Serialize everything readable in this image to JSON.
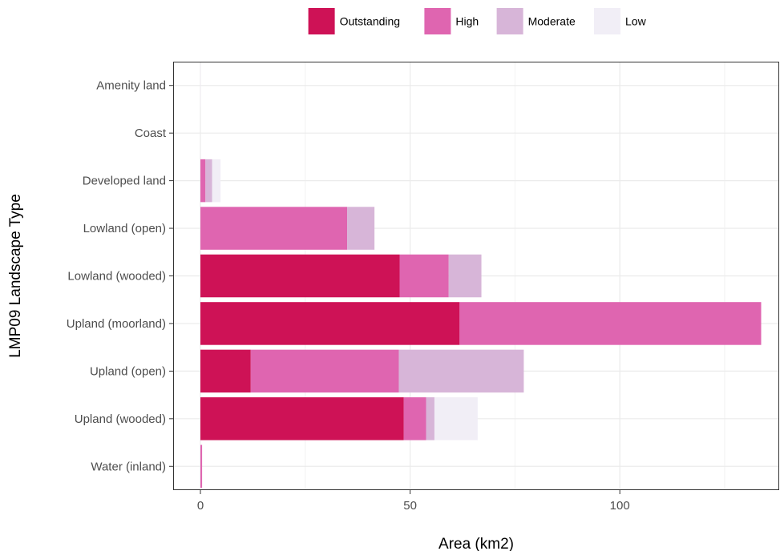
{
  "chart_data": {
    "type": "bar",
    "orientation": "horizontal",
    "stacked": true,
    "xlabel": "Area (km2)",
    "ylabel": "LMP09 Landscape Type",
    "xlim": [
      -6.5,
      138
    ],
    "x_ticks": [
      0,
      50,
      100
    ],
    "grid": true,
    "legend_position": "top",
    "categories": [
      "Amenity land",
      "Coast",
      "Developed land",
      "Lowland (open)",
      "Lowland (wooded)",
      "Upland (moorland)",
      "Upland (open)",
      "Upland (wooded)",
      "Water (inland)"
    ],
    "series": [
      {
        "name": "Outstanding",
        "color": "#ce1256",
        "values": [
          0,
          0,
          0,
          0,
          47.5,
          61.8,
          12.0,
          48.5,
          0
        ]
      },
      {
        "name": "High",
        "color": "#df65b0",
        "values": [
          0,
          0,
          1.2,
          35.0,
          11.7,
          71.9,
          35.3,
          5.3,
          0.4
        ]
      },
      {
        "name": "Moderate",
        "color": "#d7b5d8",
        "values": [
          0,
          0,
          1.6,
          6.5,
          7.8,
          0,
          29.8,
          2.0,
          0
        ]
      },
      {
        "name": "Low",
        "color": "#f1eef6",
        "values": [
          0.1,
          0,
          2.0,
          0,
          0,
          0,
          0,
          10.3,
          0
        ]
      }
    ]
  }
}
